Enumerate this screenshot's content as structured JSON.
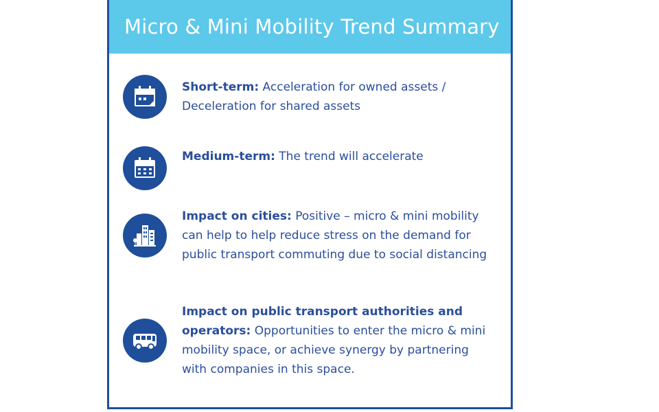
{
  "header": {
    "title": "Micro & Mini Mobility Trend Summary"
  },
  "items": [
    {
      "icon": "calendar-icon",
      "label": "Short-term:",
      "text": " Acceleration for owned assets / Deceleration for shared assets"
    },
    {
      "icon": "calendar-icon",
      "label": "Medium-term:",
      "text": " The trend will accelerate"
    },
    {
      "icon": "city-buildings-icon",
      "label": "Impact on cities:",
      "text": " Positive – micro & mini mobility can help to help reduce stress on the demand for public transport commuting due to social distancing"
    },
    {
      "icon": "bus-icon",
      "label": "Impact on public transport authorities and operators:",
      "text": " Opportunities to enter the micro & mini mobility space, or achieve synergy by partnering with companies in this space."
    }
  ],
  "colors": {
    "header_bg": "#5cc8ea",
    "accent": "#1f4e9a",
    "text": "#2a4e9c"
  }
}
